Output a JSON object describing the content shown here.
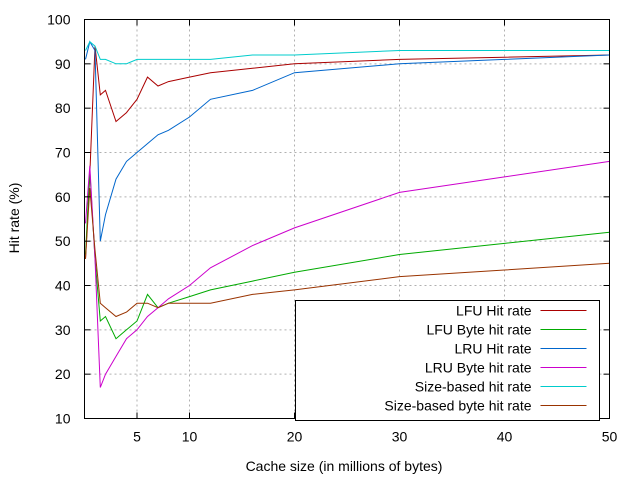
{
  "chart_data": {
    "type": "line",
    "xlabel": "Cache size (in millions of bytes)",
    "ylabel": "Hit rate (%)",
    "xlim": [
      0,
      50
    ],
    "ylim": [
      10,
      100
    ],
    "xticks": [
      5,
      10,
      20,
      30,
      40,
      50
    ],
    "yticks": [
      10,
      20,
      30,
      40,
      50,
      60,
      70,
      80,
      90,
      100
    ],
    "grid": true,
    "legend_position": "bottom-right",
    "series": [
      {
        "name": "LFU Hit rate",
        "color": "#aa0000",
        "x": [
          0.1,
          0.5,
          1,
          1.5,
          2,
          3,
          4,
          5,
          6,
          7,
          8,
          10,
          12,
          16,
          20,
          30,
          40,
          50
        ],
        "y": [
          46,
          65,
          94,
          83,
          84,
          77,
          79,
          82,
          87,
          85,
          86,
          87,
          88,
          89,
          90,
          91,
          91.5,
          92
        ]
      },
      {
        "name": "LFU Byte hit rate",
        "color": "#00aa00",
        "x": [
          0.1,
          0.5,
          1,
          1.5,
          2,
          3,
          4,
          5,
          6,
          7,
          8,
          10,
          12,
          16,
          20,
          30,
          40,
          50
        ],
        "y": [
          47,
          66,
          46,
          32,
          33,
          28,
          30,
          32,
          38,
          35,
          36,
          37.5,
          39,
          41,
          43,
          47,
          49.5,
          52
        ]
      },
      {
        "name": "LRU Hit rate",
        "color": "#0066cc",
        "x": [
          0.1,
          0.5,
          1,
          1.5,
          2,
          3,
          4,
          5,
          6,
          7,
          8,
          10,
          12,
          16,
          20,
          30,
          40,
          50
        ],
        "y": [
          91,
          95,
          93,
          50,
          56,
          64,
          68,
          70,
          72,
          74,
          75,
          78,
          82,
          84,
          88,
          90,
          91,
          92
        ]
      },
      {
        "name": "LRU Byte hit rate",
        "color": "#cc00cc",
        "x": [
          0.1,
          0.5,
          1,
          1.5,
          2,
          3,
          4,
          5,
          6,
          7,
          8,
          10,
          12,
          16,
          20,
          30,
          40,
          50
        ],
        "y": [
          54,
          67,
          46,
          17,
          20,
          24,
          28,
          30,
          33,
          35,
          37,
          40,
          44,
          49,
          53,
          61,
          64.5,
          68
        ]
      },
      {
        "name": "Size-based hit rate",
        "color": "#00cccc",
        "x": [
          0.1,
          0.5,
          1,
          1.5,
          2,
          3,
          4,
          5,
          6,
          7,
          8,
          10,
          12,
          16,
          20,
          30,
          40,
          50
        ],
        "y": [
          93,
          95,
          94,
          91,
          91,
          90,
          90,
          91,
          91,
          91,
          91,
          91,
          91,
          92,
          92,
          93,
          93,
          93
        ]
      },
      {
        "name": "Size-based byte hit rate",
        "color": "#993300",
        "x": [
          0.1,
          0.5,
          1,
          1.5,
          2,
          3,
          4,
          5,
          6,
          7,
          8,
          10,
          12,
          16,
          20,
          30,
          40,
          50
        ],
        "y": [
          46,
          62,
          48,
          36,
          35,
          33,
          34,
          36,
          36,
          35,
          36,
          36,
          36,
          38,
          39,
          42,
          43.5,
          45
        ]
      }
    ]
  }
}
